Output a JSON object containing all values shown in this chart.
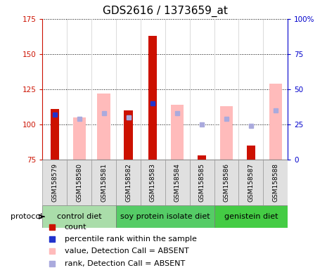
{
  "title": "GDS2616 / 1373659_at",
  "samples": [
    "GSM158579",
    "GSM158580",
    "GSM158581",
    "GSM158582",
    "GSM158583",
    "GSM158584",
    "GSM158585",
    "GSM158586",
    "GSM158587",
    "GSM158588"
  ],
  "groups": [
    {
      "label": "control diet",
      "start": 0,
      "end": 2
    },
    {
      "label": "soy protein isolate diet",
      "start": 3,
      "end": 6
    },
    {
      "label": "genistein diet",
      "start": 7,
      "end": 9
    }
  ],
  "group_colors": [
    "#aaddaa",
    "#55cc66",
    "#44cc44"
  ],
  "red_bars": [
    111,
    null,
    null,
    110,
    163,
    null,
    78,
    null,
    85,
    null
  ],
  "pink_bars": [
    null,
    105,
    122,
    null,
    null,
    114,
    null,
    113,
    null,
    129
  ],
  "blue_markers": [
    107,
    null,
    null,
    105,
    115,
    null,
    null,
    null,
    null,
    null
  ],
  "lavender_markers": [
    null,
    104,
    108,
    105,
    null,
    108,
    100,
    104,
    99,
    110
  ],
  "ylim_left": [
    75,
    175
  ],
  "ylim_right": [
    0,
    100
  ],
  "yticks_left": [
    75,
    100,
    125,
    150,
    175
  ],
  "yticks_right": [
    0,
    25,
    50,
    75,
    100
  ],
  "ytick_labels_right": [
    "0",
    "25",
    "50",
    "75",
    "100%"
  ],
  "red_color": "#cc1100",
  "pink_color": "#ffbbbb",
  "blue_color": "#2233cc",
  "lavender_color": "#aaaadd",
  "sample_bg": "#e0e0e0",
  "plot_bg": "#ffffff",
  "left_color": "#cc1100",
  "right_color": "#0000cc",
  "tick_fontsize": 7.5,
  "title_fontsize": 11,
  "legend_fontsize": 8,
  "sample_fontsize": 6.5,
  "proto_fontsize": 8,
  "group_fontsize": 8
}
